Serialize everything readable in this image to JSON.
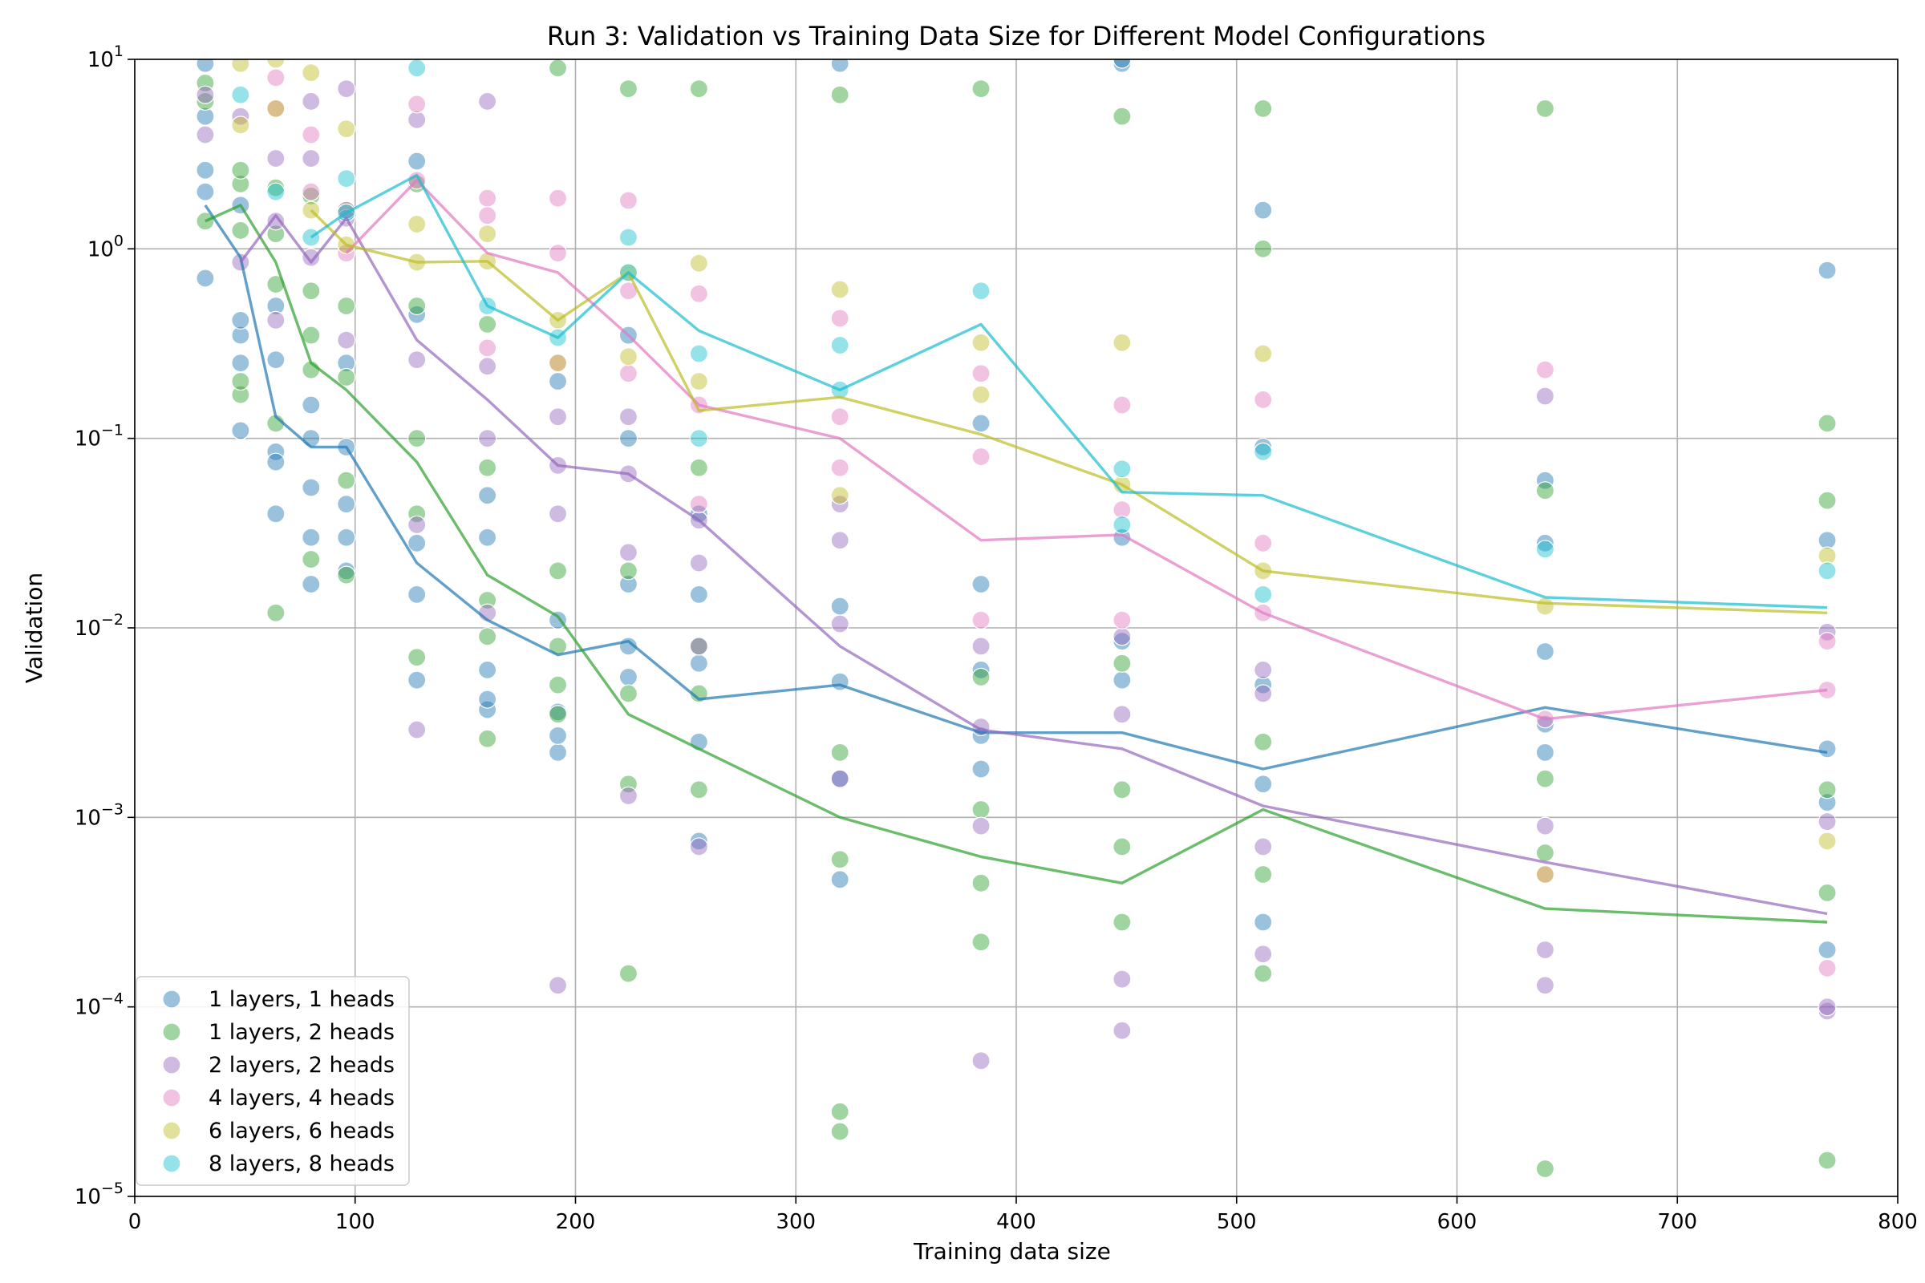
{
  "chart_data": {
    "type": "scatter",
    "title": "Run 3: Validation vs Training Data Size for Different Model Configurations",
    "xlabel": "Training data size",
    "ylabel": "Validation",
    "xlim": [
      0,
      800
    ],
    "ylim": [
      1e-05,
      10
    ],
    "yscale": "log",
    "grid": true,
    "legend_position": "lower-left",
    "xticks": [
      {
        "value": 0,
        "label": "0"
      },
      {
        "value": 100,
        "label": "100"
      },
      {
        "value": 200,
        "label": "200"
      },
      {
        "value": 300,
        "label": "300"
      },
      {
        "value": 400,
        "label": "400"
      },
      {
        "value": 500,
        "label": "500"
      },
      {
        "value": 600,
        "label": "600"
      },
      {
        "value": 700,
        "label": "700"
      },
      {
        "value": 800,
        "label": "800"
      }
    ],
    "yticks": [
      {
        "value": 1e-05,
        "base": "10",
        "exp": "−5"
      },
      {
        "value": 0.0001,
        "base": "10",
        "exp": "−4"
      },
      {
        "value": 0.001,
        "base": "10",
        "exp": "−3"
      },
      {
        "value": 0.01,
        "base": "10",
        "exp": "−2"
      },
      {
        "value": 0.1,
        "base": "10",
        "exp": "−1"
      },
      {
        "value": 1,
        "base": "10",
        "exp": "0"
      },
      {
        "value": 10,
        "base": "10",
        "exp": "1"
      }
    ],
    "series": [
      {
        "name": "1 layers, 1 heads",
        "color": "#1f77b4",
        "line": {
          "x": [
            32,
            48,
            64,
            80,
            96,
            128,
            160,
            192,
            224,
            256,
            320,
            384,
            448,
            512,
            640,
            768
          ],
          "y": [
            1.7,
            0.9,
            0.13,
            0.09,
            0.09,
            0.022,
            0.011,
            0.0072,
            0.0085,
            0.0042,
            0.005,
            0.0028,
            0.0028,
            0.0018,
            0.0038,
            0.0022
          ]
        },
        "points": {
          "x": [
            32,
            32,
            32,
            32,
            32,
            48,
            48,
            48,
            48,
            48,
            64,
            64,
            64,
            64,
            64,
            80,
            80,
            80,
            80,
            80,
            96,
            96,
            96,
            96,
            96,
            128,
            128,
            128,
            128,
            128,
            160,
            160,
            160,
            160,
            160,
            192,
            192,
            192,
            192,
            192,
            224,
            224,
            224,
            224,
            224,
            256,
            256,
            256,
            256,
            256,
            320,
            320,
            320,
            320,
            320,
            384,
            384,
            384,
            384,
            384,
            448,
            448,
            448,
            448,
            448,
            512,
            512,
            512,
            512,
            512,
            640,
            640,
            640,
            640,
            640,
            768,
            768,
            768,
            768,
            768
          ],
          "y": [
            0.7,
            2.0,
            2.6,
            5.0,
            9.5,
            0.11,
            0.35,
            0.42,
            0.25,
            1.7,
            0.04,
            0.085,
            0.26,
            0.5,
            0.075,
            0.017,
            0.03,
            0.1,
            0.15,
            0.055,
            0.02,
            0.03,
            0.045,
            0.09,
            0.25,
            0.0053,
            0.015,
            0.028,
            0.45,
            2.9,
            0.0037,
            0.0042,
            0.006,
            0.03,
            0.05,
            0.0022,
            0.0027,
            0.0036,
            0.011,
            0.2,
            0.0055,
            0.008,
            0.017,
            0.1,
            0.35,
            0.00075,
            0.0025,
            0.0065,
            0.015,
            0.04,
            0.00047,
            0.0016,
            0.0052,
            0.013,
            9.5,
            0.0018,
            0.0027,
            0.006,
            0.017,
            0.12,
            0.0053,
            0.0085,
            0.03,
            9.5,
            10.0,
            0.00028,
            0.0015,
            0.005,
            0.09,
            1.6,
            0.0022,
            0.0031,
            0.0075,
            0.028,
            0.06,
            0.0002,
            0.0012,
            0.0023,
            0.029,
            0.77
          ]
        }
      },
      {
        "name": "1 layers, 2 heads",
        "color": "#2ca02c",
        "line": {
          "x": [
            32,
            48,
            64,
            80,
            96,
            128,
            160,
            192,
            224,
            256,
            320,
            384,
            448,
            512,
            640,
            768
          ],
          "y": [
            1.4,
            1.7,
            0.85,
            0.25,
            0.18,
            0.075,
            0.019,
            0.0115,
            0.0035,
            0.0023,
            0.001,
            0.00062,
            0.00045,
            0.0011,
            0.00033,
            0.00028
          ]
        },
        "points": {
          "x": [
            32,
            32,
            32,
            48,
            48,
            48,
            48,
            48,
            64,
            64,
            64,
            64,
            64,
            80,
            80,
            80,
            80,
            80,
            96,
            96,
            96,
            96,
            96,
            128,
            128,
            128,
            128,
            128,
            160,
            160,
            160,
            160,
            160,
            192,
            192,
            192,
            192,
            192,
            224,
            224,
            224,
            224,
            224,
            256,
            256,
            256,
            256,
            256,
            320,
            320,
            320,
            320,
            320,
            384,
            384,
            384,
            384,
            384,
            448,
            448,
            448,
            448,
            448,
            512,
            512,
            512,
            512,
            512,
            640,
            640,
            640,
            640,
            640,
            768,
            768,
            768,
            768,
            768
          ],
          "y": [
            1.4,
            6.0,
            7.5,
            0.17,
            0.2,
            1.25,
            2.2,
            2.6,
            0.012,
            0.12,
            0.65,
            1.2,
            2.1,
            0.023,
            0.23,
            0.35,
            0.6,
            1.9,
            0.019,
            0.06,
            0.21,
            0.5,
            1.6,
            0.007,
            0.04,
            0.1,
            0.5,
            2.2,
            0.0026,
            0.009,
            0.014,
            0.07,
            0.4,
            0.0035,
            0.005,
            0.008,
            0.02,
            9.0,
            0.00015,
            0.0015,
            0.0045,
            0.02,
            7.0,
            0.0014,
            0.0045,
            0.008,
            0.07,
            7.0,
            2.2e-05,
            2.8e-05,
            0.0006,
            0.0022,
            6.5,
            0.00022,
            0.00045,
            0.0011,
            0.0055,
            7.0,
            0.00028,
            0.0007,
            0.0014,
            0.0065,
            5.0,
            0.00015,
            0.0005,
            0.0025,
            1.0,
            5.5,
            1.4e-05,
            0.0016,
            0.00065,
            0.053,
            5.5,
            1.55e-05,
            0.0004,
            0.0014,
            0.047,
            0.12
          ]
        }
      },
      {
        "name": "2 layers, 2 heads",
        "color": "#9467bd",
        "line": {
          "x": [
            48,
            64,
            80,
            96,
            128,
            160,
            192,
            224,
            256,
            320,
            384,
            448,
            512,
            640,
            768
          ],
          "y": [
            0.85,
            1.5,
            0.85,
            1.45,
            0.33,
            0.16,
            0.072,
            0.065,
            0.037,
            0.008,
            0.0029,
            0.0023,
            0.00115,
            0.00058,
            0.00031
          ]
        },
        "points": {
          "x": [
            32,
            32,
            48,
            48,
            64,
            64,
            64,
            80,
            80,
            80,
            96,
            96,
            96,
            128,
            128,
            128,
            128,
            160,
            160,
            160,
            160,
            192,
            192,
            192,
            192,
            224,
            224,
            224,
            224,
            256,
            256,
            256,
            256,
            320,
            320,
            320,
            320,
            384,
            384,
            384,
            384,
            448,
            448,
            448,
            448,
            512,
            512,
            512,
            512,
            640,
            640,
            640,
            640,
            768,
            768,
            768,
            768
          ],
          "y": [
            4.0,
            6.5,
            0.85,
            5.0,
            0.42,
            1.4,
            3.0,
            0.9,
            3.0,
            6.0,
            0.33,
            1.45,
            7.0,
            0.0029,
            0.035,
            0.26,
            4.8,
            0.012,
            0.1,
            0.24,
            6.0,
            0.00013,
            0.04,
            0.13,
            0.072,
            0.0013,
            0.025,
            0.13,
            0.065,
            0.0007,
            0.008,
            0.022,
            0.037,
            0.0016,
            0.0105,
            0.029,
            0.045,
            5.2e-05,
            0.0009,
            0.003,
            0.008,
            7.5e-05,
            0.00014,
            0.0035,
            0.009,
            0.00019,
            0.0007,
            0.0045,
            0.006,
            0.00013,
            0.0002,
            0.0009,
            0.167,
            9.5e-05,
            0.0001,
            0.00095,
            0.0095
          ]
        }
      },
      {
        "name": "4 layers, 4 heads",
        "color": "#e377c2",
        "line": {
          "x": [
            96,
            128,
            160,
            192,
            224,
            256,
            320,
            384,
            448,
            512,
            640,
            768
          ],
          "y": [
            0.95,
            2.3,
            0.95,
            0.75,
            0.35,
            0.15,
            0.1,
            0.029,
            0.031,
            0.012,
            0.0033,
            0.0047
          ]
        },
        "points": {
          "x": [
            64,
            64,
            80,
            80,
            96,
            96,
            128,
            128,
            160,
            160,
            160,
            192,
            192,
            192,
            224,
            224,
            224,
            256,
            256,
            256,
            320,
            320,
            320,
            384,
            384,
            384,
            448,
            448,
            448,
            512,
            512,
            512,
            640,
            640,
            640,
            768,
            768,
            768
          ],
          "y": [
            5.5,
            8.0,
            2.0,
            4.0,
            0.95,
            1.6,
            2.3,
            5.8,
            1.85,
            1.5,
            0.3,
            1.85,
            0.95,
            0.25,
            1.8,
            0.6,
            0.22,
            0.58,
            0.15,
            0.045,
            0.43,
            0.13,
            0.07,
            0.22,
            0.08,
            0.011,
            0.15,
            0.042,
            0.011,
            0.16,
            0.028,
            0.012,
            0.23,
            0.0033,
            0.0005,
            0.0085,
            0.0047,
            0.00016
          ]
        }
      },
      {
        "name": "6 layers, 6 heads",
        "color": "#bcbd22",
        "line": {
          "x": [
            80,
            96,
            128,
            160,
            192,
            224,
            256,
            320,
            384,
            448,
            512,
            640,
            768
          ],
          "y": [
            1.6,
            1.05,
            0.85,
            0.86,
            0.42,
            0.75,
            0.14,
            0.165,
            0.105,
            0.057,
            0.02,
            0.0135,
            0.012
          ]
        },
        "points": {
          "x": [
            48,
            48,
            64,
            64,
            80,
            80,
            96,
            96,
            128,
            128,
            160,
            160,
            192,
            192,
            224,
            224,
            256,
            256,
            320,
            320,
            384,
            384,
            448,
            448,
            512,
            512,
            640,
            640,
            768,
            768
          ],
          "y": [
            9.5,
            4.5,
            5.5,
            10.0,
            8.5,
            1.6,
            1.05,
            4.3,
            1.35,
            0.85,
            1.2,
            0.86,
            0.42,
            0.25,
            0.75,
            0.27,
            0.84,
            0.2,
            0.61,
            0.05,
            0.32,
            0.17,
            0.32,
            0.057,
            0.28,
            0.02,
            0.013,
            0.0005,
            0.024,
            0.00075
          ]
        }
      },
      {
        "name": "8 layers, 8 heads",
        "color": "#17becf",
        "line": {
          "x": [
            80,
            96,
            128,
            160,
            192,
            224,
            256,
            320,
            384,
            448,
            512,
            640,
            768
          ],
          "y": [
            1.15,
            1.55,
            2.45,
            0.5,
            0.34,
            0.75,
            0.37,
            0.18,
            0.4,
            0.052,
            0.05,
            0.0145,
            0.0128
          ]
        },
        "points": {
          "x": [
            48,
            64,
            80,
            96,
            96,
            128,
            160,
            192,
            224,
            224,
            256,
            256,
            320,
            320,
            384,
            448,
            448,
            512,
            512,
            640,
            768
          ],
          "y": [
            6.5,
            2.0,
            1.15,
            1.55,
            2.35,
            9.0,
            0.5,
            0.34,
            1.15,
            0.75,
            0.28,
            0.1,
            0.31,
            0.18,
            0.6,
            0.069,
            0.035,
            0.085,
            0.015,
            0.026,
            0.02
          ]
        }
      }
    ]
  }
}
